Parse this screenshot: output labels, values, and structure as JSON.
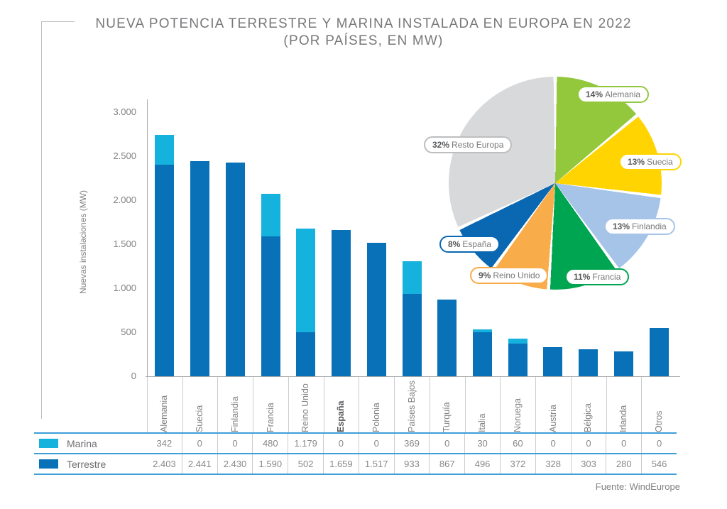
{
  "title": {
    "line1": "NUEVA POTENCIA TERRESTRE Y MARINA INSTALADA EN EUROPA EN 2022",
    "line2": "(POR PAÍSES, EN MW)"
  },
  "y_axis": {
    "label": "Nuevas instalaciones (MW)",
    "ticks": [
      "3.000",
      "2.500",
      "2.000",
      "1.500",
      "1.000",
      "500",
      "0"
    ]
  },
  "chart_data": [
    {
      "type": "bar",
      "stacked": true,
      "title": "Nueva potencia terrestre y marina instalada en Europa en 2022 (por países, en MW)",
      "xlabel": "",
      "ylabel": "Nuevas instalaciones (MW)",
      "ylim": [
        0,
        3000
      ],
      "grid": false,
      "legend_position": "bottom-table",
      "categories": [
        "Alemania",
        "Suecia",
        "Finlandia",
        "Francia",
        "Reino Unido",
        "España",
        "Polonia",
        "Países Bajos",
        "Turquía",
        "Italia",
        "Noruega",
        "Austria",
        "Bélgica",
        "Irlanda",
        "Otros"
      ],
      "highlighted_category": "España",
      "series": [
        {
          "name": "Marina",
          "color": "#14B2DC",
          "values": [
            342,
            0,
            0,
            480,
            1179,
            0,
            0,
            369,
            0,
            30,
            60,
            0,
            0,
            0,
            0
          ]
        },
        {
          "name": "Terrestre",
          "color": "#0971B8",
          "values": [
            2403,
            2441,
            2430,
            1590,
            502,
            1659,
            1517,
            933,
            867,
            496,
            372,
            328,
            303,
            280,
            546
          ]
        }
      ]
    },
    {
      "type": "pie",
      "subtype": "donut",
      "start_angle_deg": 0,
      "direction": "clockwise",
      "segments": [
        {
          "name": "Alemania",
          "pct": 14,
          "pct_display": "14%",
          "color": "#93C83D"
        },
        {
          "name": "Suecia",
          "pct": 13,
          "pct_display": "13%",
          "color": "#FFD400"
        },
        {
          "name": "Finlandia",
          "pct": 13,
          "pct_display": "13%",
          "color": "#A6C4E8"
        },
        {
          "name": "Francia",
          "pct": 11,
          "pct_display": "11%",
          "color": "#00A551"
        },
        {
          "name": "Reino Unido",
          "pct": 9,
          "pct_display": "9%",
          "color": "#F8AC4A"
        },
        {
          "name": "España",
          "pct": 8,
          "pct_display": "8%",
          "color": "#0A67B2"
        },
        {
          "name": "Resto Europa",
          "pct": 32,
          "pct_display": "32%",
          "color": "#D8D9DA",
          "border_color": "#BCBEC0"
        }
      ]
    }
  ],
  "table": {
    "rows": [
      {
        "label": "Marina",
        "swatch_color": "#14B2DC",
        "values": [
          "342",
          "0",
          "0",
          "480",
          "1.179",
          "0",
          "0",
          "369",
          "0",
          "30",
          "60",
          "0",
          "0",
          "0",
          "0"
        ]
      },
      {
        "label": "Terrestre",
        "swatch_color": "#0971B8",
        "values": [
          "2.403",
          "2.441",
          "2.430",
          "1.590",
          "502",
          "1.659",
          "1.517",
          "933",
          "867",
          "496",
          "372",
          "328",
          "303",
          "280",
          "546"
        ]
      }
    ]
  },
  "footer": {
    "source": "Fuente: WindEurope"
  }
}
